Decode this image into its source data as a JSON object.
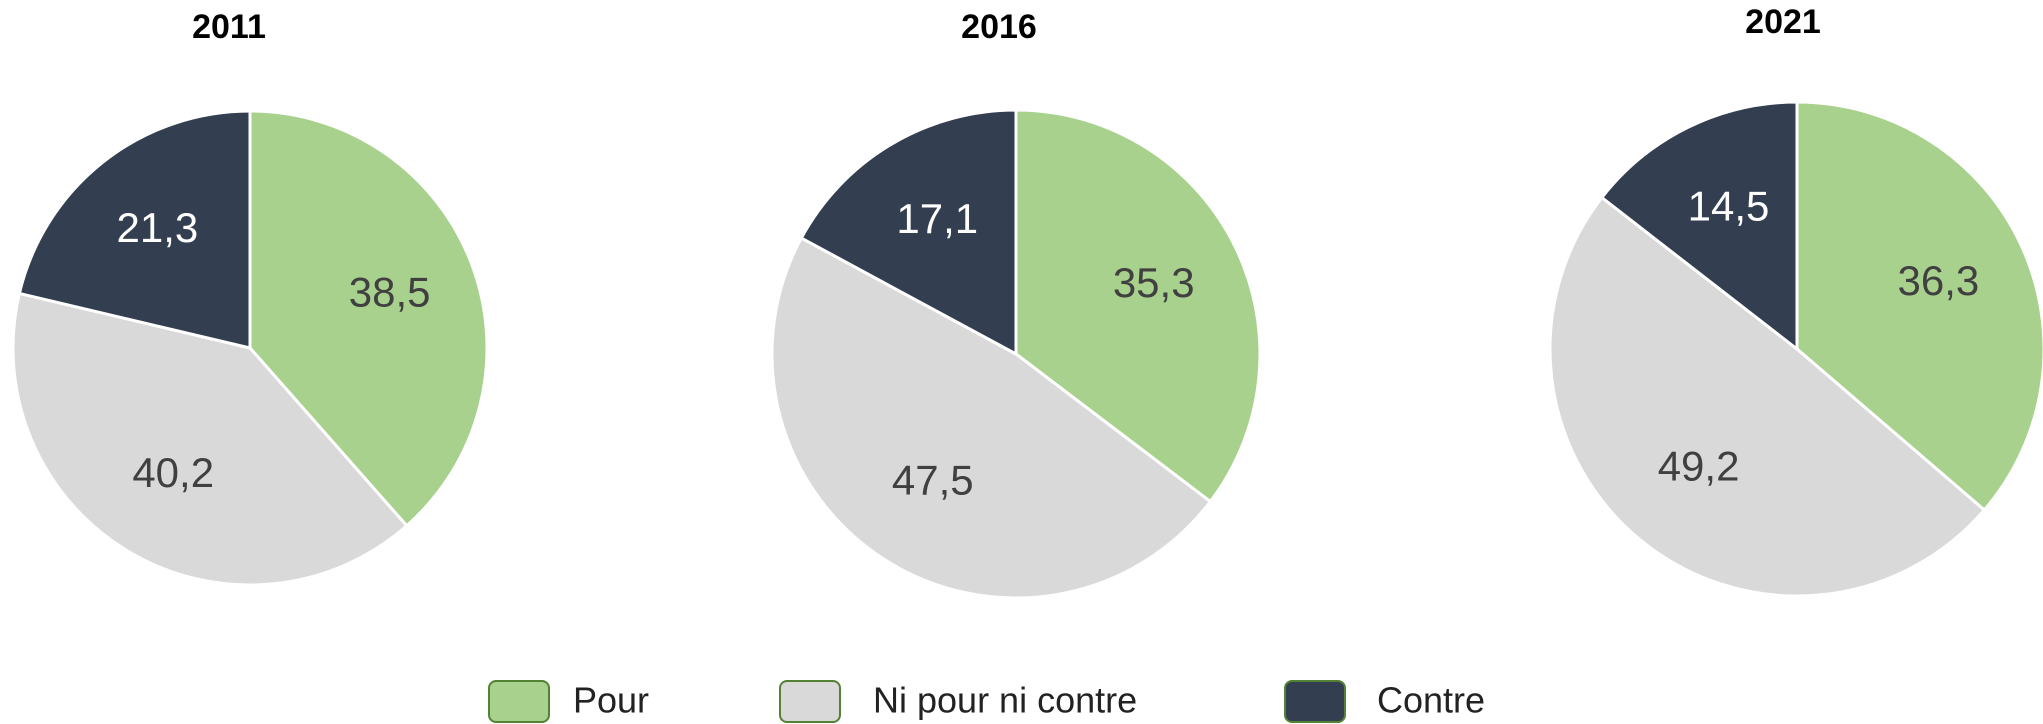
{
  "chart_data": [
    {
      "type": "pie",
      "title": "2011",
      "categories": [
        "Pour",
        "Ni pour ni contre",
        "Contre"
      ],
      "values": [
        38.5,
        40.2,
        21.3
      ],
      "value_labels": [
        "38,5",
        "40,2",
        "21,3"
      ],
      "colors": [
        "#a9d18e",
        "#d9d9d9",
        "#333f50"
      ]
    },
    {
      "type": "pie",
      "title": "2016",
      "categories": [
        "Pour",
        "Ni pour ni contre",
        "Contre"
      ],
      "values": [
        35.3,
        47.5,
        17.1
      ],
      "value_labels": [
        "35,3",
        "47,5",
        "17,1"
      ],
      "colors": [
        "#a9d18e",
        "#d9d9d9",
        "#333f50"
      ]
    },
    {
      "type": "pie",
      "title": "2021",
      "categories": [
        "Pour",
        "Ni pour ni contre",
        "Contre"
      ],
      "values": [
        36.3,
        49.2,
        14.5
      ],
      "value_labels": [
        "36,3",
        "49,2",
        "14,5"
      ],
      "colors": [
        "#a9d18e",
        "#d9d9d9",
        "#333f50"
      ]
    }
  ]
}
